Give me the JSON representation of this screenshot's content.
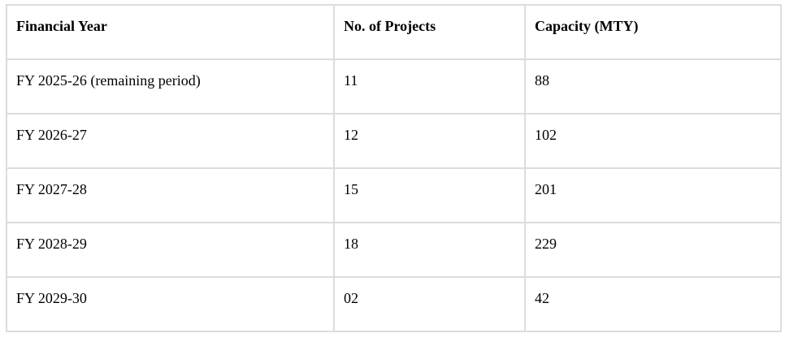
{
  "table": {
    "headers": [
      "Financial Year",
      "No. of Projects",
      "Capacity (MTY)"
    ],
    "rows": [
      [
        "FY 2025-26 (remaining period)",
        "11",
        "88"
      ],
      [
        "FY 2026-27",
        "12",
        "102"
      ],
      [
        "FY 2027-28",
        "15",
        "201"
      ],
      [
        "FY 2028-29",
        "18",
        "229"
      ],
      [
        "FY 2029-30",
        "02",
        "42"
      ]
    ]
  },
  "colors": {
    "border": "#dcdcdc",
    "text": "#000000",
    "background": "#ffffff"
  }
}
